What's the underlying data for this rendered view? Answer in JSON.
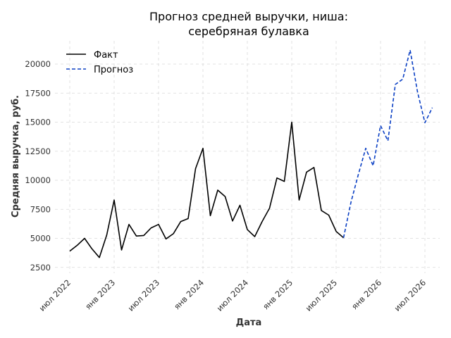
{
  "chart_data": {
    "type": "line",
    "title_line1": "Прогноз средней выручки, ниша:",
    "title_line2": "серебряная булавка",
    "xlabel": "Дата",
    "ylabel": "Средняя выручка, руб.",
    "x_ticks": [
      "июл 2022",
      "янв 2023",
      "июл 2023",
      "янв 2024",
      "июл 2024",
      "янв 2025",
      "июл 2025",
      "янв 2026",
      "июл 2026"
    ],
    "y_ticks": [
      "2500",
      "5000",
      "7500",
      "10000",
      "12500",
      "15000",
      "17500",
      "20000"
    ],
    "y_tick_values": [
      2500,
      5000,
      7500,
      10000,
      12500,
      15000,
      17500,
      20000
    ],
    "ylim": [
      2000,
      22000
    ],
    "xlim": [
      "2022-05",
      "2026-09"
    ],
    "grid": true,
    "legend_position": "top-left",
    "series": [
      {
        "name": "Факт",
        "color": "#000000",
        "style": "solid",
        "x": [
          "2022-07",
          "2022-08",
          "2022-09",
          "2022-10",
          "2022-11",
          "2022-12",
          "2023-01",
          "2023-02",
          "2023-03",
          "2023-04",
          "2023-05",
          "2023-06",
          "2023-07",
          "2023-08",
          "2023-09",
          "2023-10",
          "2023-11",
          "2023-12",
          "2024-01",
          "2024-02",
          "2024-03",
          "2024-04",
          "2024-05",
          "2024-06",
          "2024-07",
          "2024-08",
          "2024-09",
          "2024-10",
          "2024-11",
          "2024-12",
          "2025-01",
          "2025-02",
          "2025-03",
          "2025-04",
          "2025-05",
          "2025-06",
          "2025-07",
          "2025-08"
        ],
        "y": [
          3900,
          4400,
          5000,
          4100,
          3350,
          5300,
          8300,
          4000,
          6200,
          5200,
          5250,
          5900,
          6200,
          4950,
          5400,
          6450,
          6700,
          11000,
          12750,
          6950,
          9150,
          8600,
          6500,
          7850,
          5750,
          5150,
          6450,
          7600,
          10200,
          9900,
          15000,
          8300,
          10700,
          11100,
          7400,
          7000,
          5600,
          5050
        ]
      },
      {
        "name": "Прогноз",
        "color": "#0a3fc4",
        "style": "dashed",
        "x": [
          "2025-08",
          "2025-09",
          "2025-10",
          "2025-11",
          "2025-12",
          "2026-01",
          "2026-02",
          "2026-03",
          "2026-04",
          "2026-05",
          "2026-06",
          "2026-07",
          "2026-08"
        ],
        "y": [
          5050,
          8100,
          10500,
          12750,
          11250,
          14700,
          13400,
          18250,
          18700,
          21200,
          17600,
          14950,
          16250
        ]
      }
    ]
  }
}
